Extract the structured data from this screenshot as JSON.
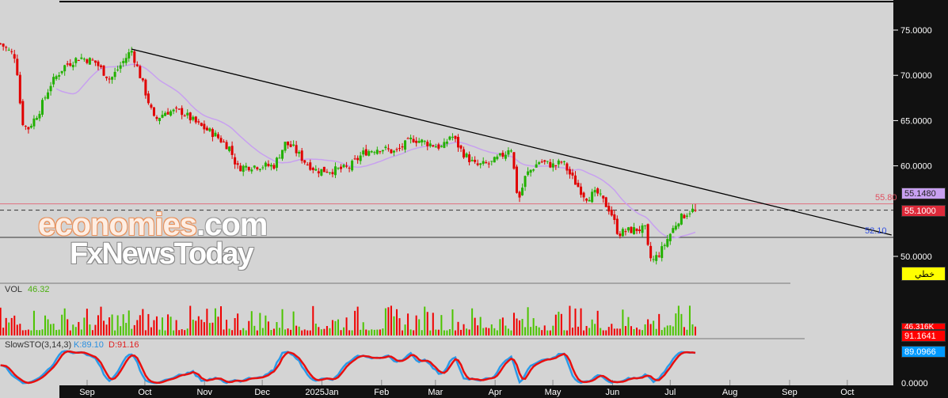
{
  "chart_data": {
    "type": "candlestick",
    "day_origin": "2024-09-01",
    "price_axis": {
      "ticks": [
        "75.0000",
        "70.0000",
        "65.0000",
        "60.0000",
        "50.0000"
      ],
      "values": [
        75,
        70,
        65,
        60,
        50
      ],
      "range": [
        46,
        77
      ]
    },
    "time_axis": {
      "labels": [
        "Sep",
        "Oct",
        "Nov",
        "Dec",
        "2025Jan",
        "Feb",
        "Mar",
        "Apr",
        "May",
        "Jun",
        "Jul",
        "Aug",
        "Sep",
        "Oct"
      ],
      "days": [
        0,
        30,
        61,
        91,
        122,
        153,
        181,
        212,
        242,
        273,
        303,
        334,
        365,
        395
      ]
    },
    "close_path": [
      [
        -45,
        73.5
      ],
      [
        -37,
        72
      ],
      [
        -34,
        65
      ],
      [
        -31,
        64
      ],
      [
        -25,
        66
      ],
      [
        -19,
        69
      ],
      [
        -12,
        71
      ],
      [
        -4,
        72
      ],
      [
        4,
        71.5
      ],
      [
        12,
        69.5
      ],
      [
        23,
        72.8
      ],
      [
        29,
        69
      ],
      [
        35,
        65
      ],
      [
        41,
        66
      ],
      [
        49,
        66
      ],
      [
        58,
        64.5
      ],
      [
        66,
        63.5
      ],
      [
        74,
        62
      ],
      [
        78,
        59.8
      ],
      [
        86,
        60
      ],
      [
        97,
        60
      ],
      [
        103,
        62.5
      ],
      [
        107,
        62
      ],
      [
        113,
        60.5
      ],
      [
        119,
        59.5
      ],
      [
        128,
        59.5
      ],
      [
        136,
        59.8
      ],
      [
        144,
        61.5
      ],
      [
        152,
        62
      ],
      [
        160,
        61.5
      ],
      [
        169,
        63
      ],
      [
        177,
        62.5
      ],
      [
        185,
        62
      ],
      [
        189,
        63.5
      ],
      [
        195,
        61.5
      ],
      [
        202,
        60
      ],
      [
        210,
        60.3
      ],
      [
        218,
        61.5
      ],
      [
        220,
        62.5
      ],
      [
        224,
        56
      ],
      [
        228,
        59
      ],
      [
        235,
        60.5
      ],
      [
        243,
        60
      ],
      [
        247,
        60.5
      ],
      [
        251,
        59
      ],
      [
        259,
        56.5
      ],
      [
        265,
        57
      ],
      [
        272,
        55
      ],
      [
        276,
        52.5
      ],
      [
        280,
        52.8
      ],
      [
        286,
        53
      ],
      [
        290,
        53
      ],
      [
        292,
        50
      ],
      [
        294,
        49.5
      ],
      [
        298,
        50.5
      ],
      [
        303,
        52.5
      ],
      [
        307,
        54
      ],
      [
        313,
        55
      ],
      [
        317,
        55.2
      ]
    ],
    "trendline": [
      [
        23,
        72.9
      ],
      [
        418,
        52.36
      ]
    ],
    "levels": [
      {
        "value": 55.8,
        "label": "55.80",
        "color": "#e05060"
      },
      {
        "value": 55.1,
        "label": "55.10",
        "style": "dashed"
      },
      {
        "value": 52.1,
        "label": "52.10",
        "color": "#3050e0"
      }
    ],
    "moving_average": {
      "color": "#c8a0f0",
      "last": "55.1480"
    },
    "last_price": "55.1000",
    "indicator_mode": "خطي",
    "volume": {
      "label": "VOL",
      "value": "46.32",
      "last": "46.316K"
    },
    "stochastic": {
      "label": "SlowSTO(3,14,3)",
      "k_label": "K:89.10",
      "d_label": "D:91.16",
      "k_last": "89.0966",
      "d_last": "91.1641",
      "axis_zero": "0.0000"
    }
  },
  "watermark": {
    "line1a": "economies",
    "line1b": ".com",
    "line2": "FxNewsToday"
  }
}
